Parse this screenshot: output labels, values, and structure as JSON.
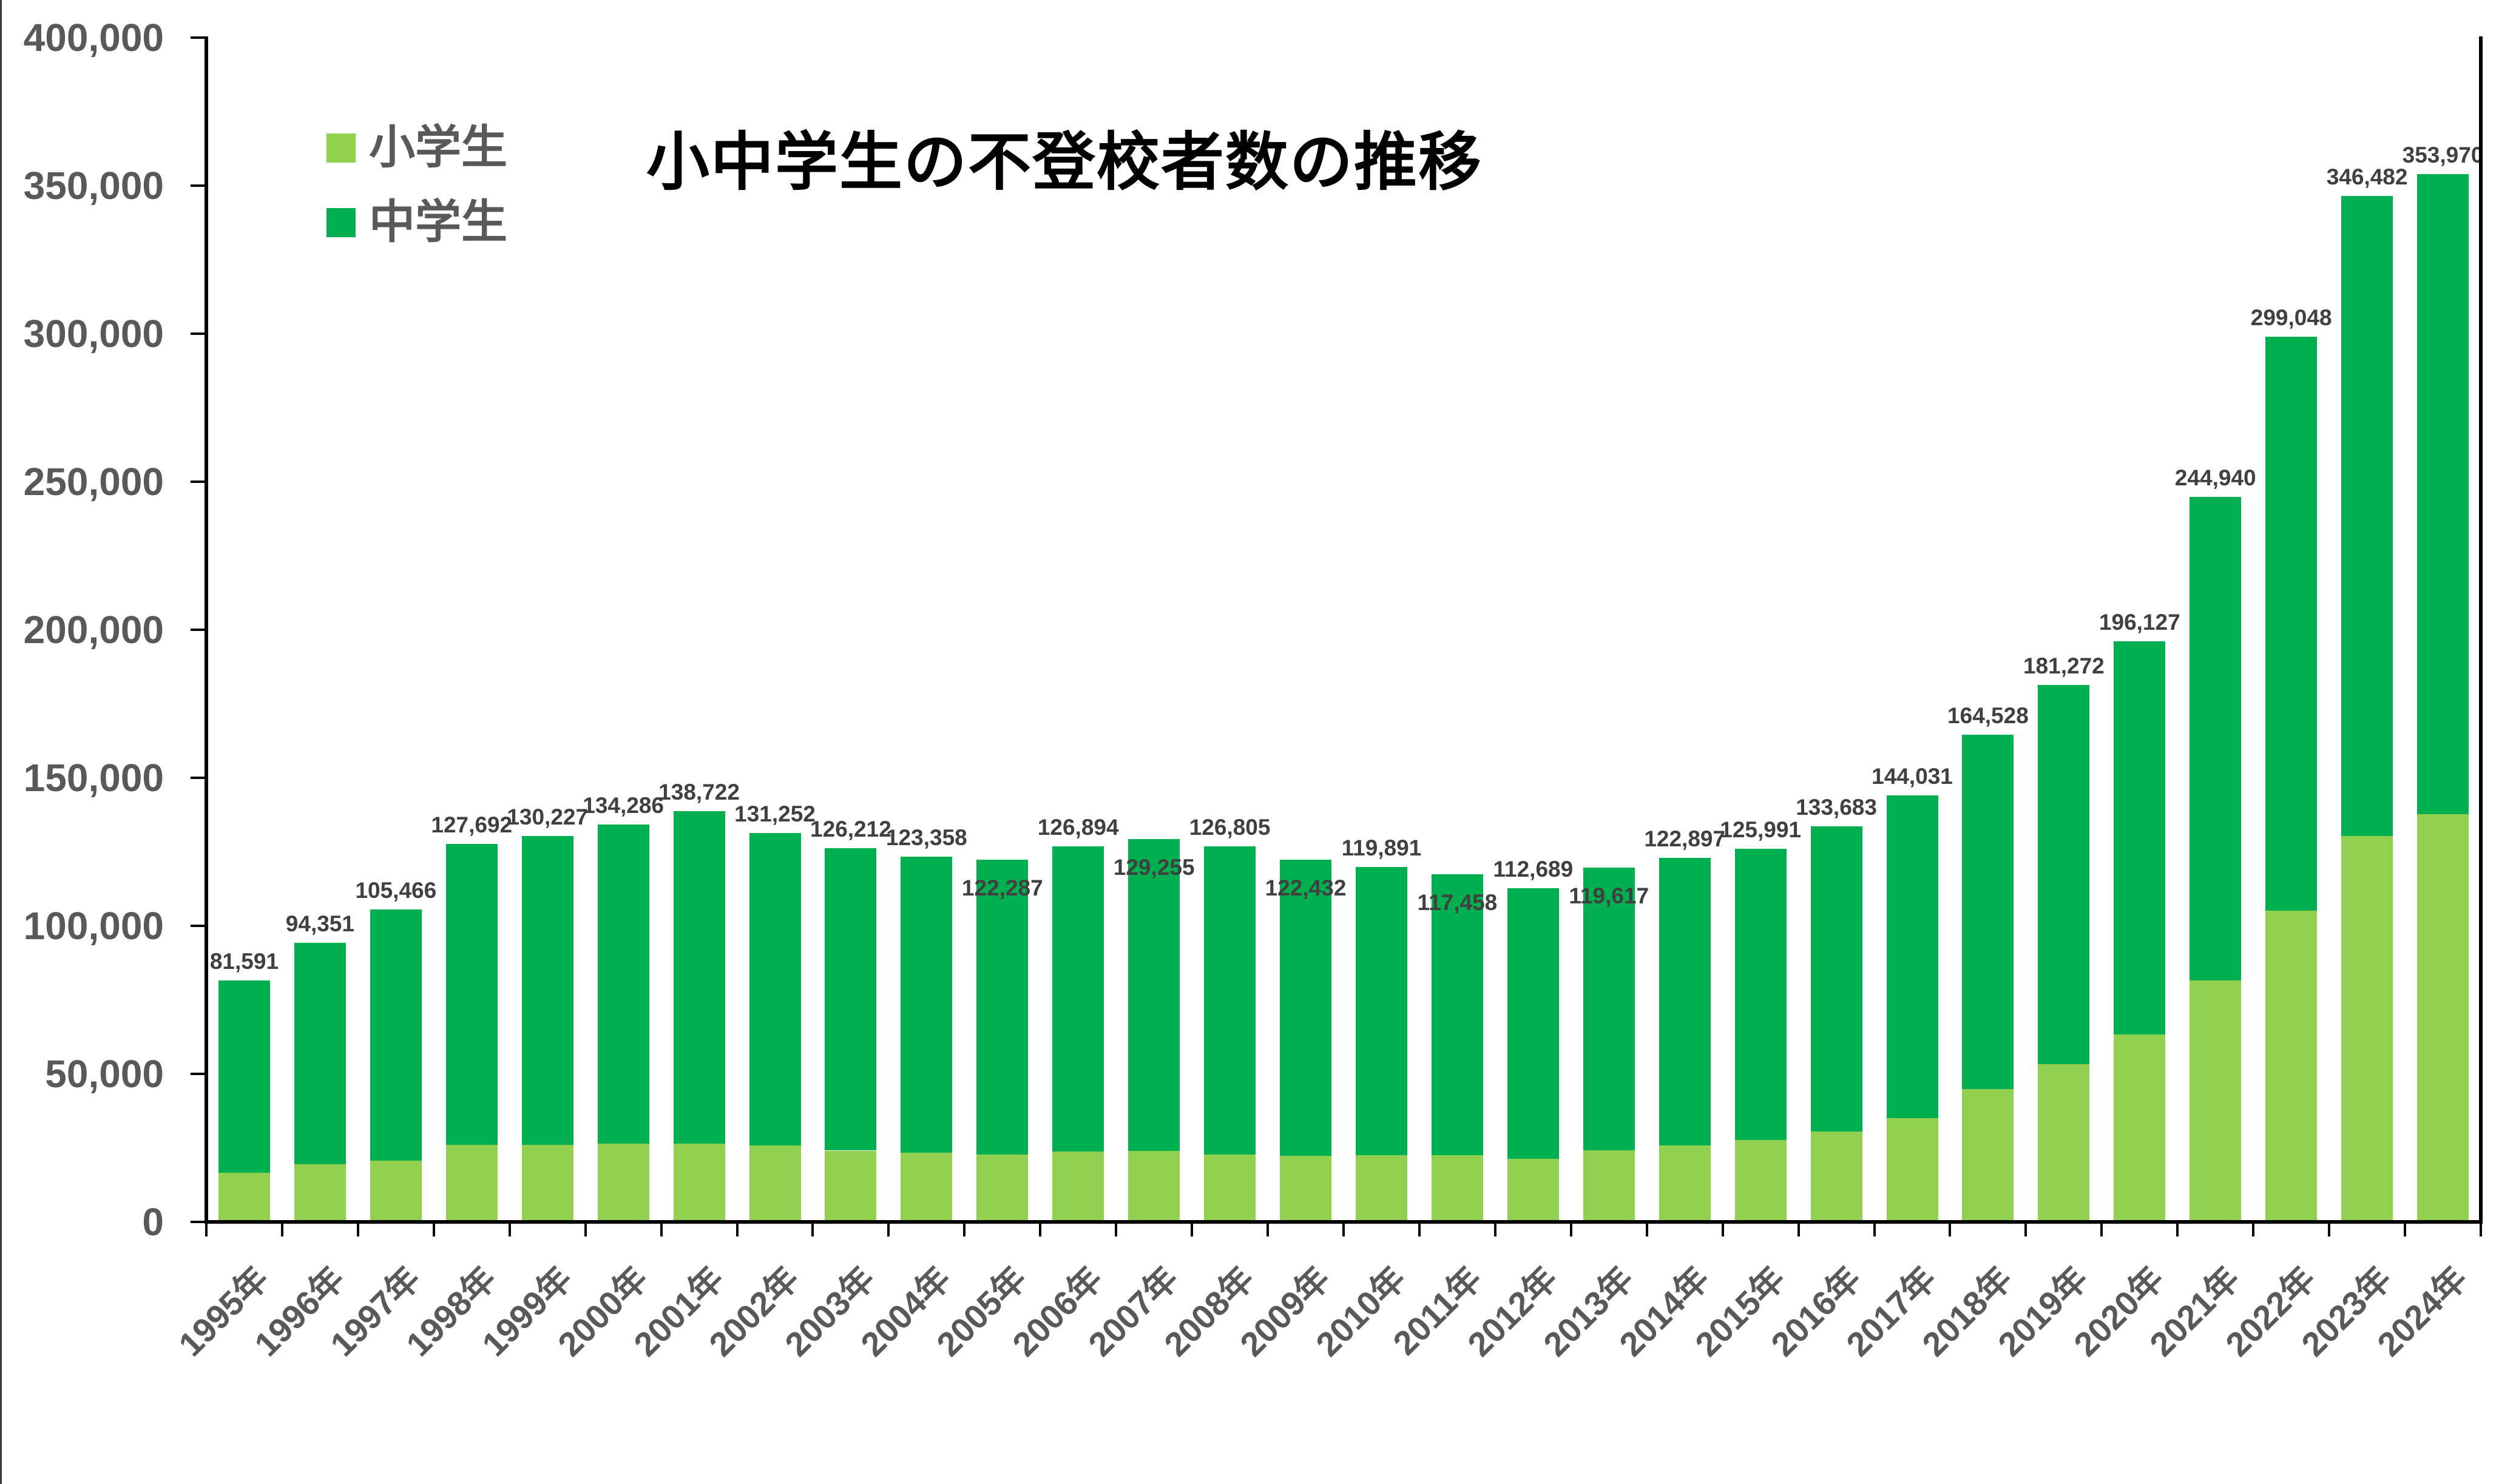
{
  "title": "小中学生の不登校者数の推移",
  "legend": {
    "position": "top-left",
    "items": [
      {
        "label": "小学生",
        "color": "#92D050"
      },
      {
        "label": "中学生",
        "color": "#00B050"
      }
    ]
  },
  "colors": {
    "background": "#FFFFFF",
    "axis": "#000000",
    "title_text": "#000000",
    "tick_label_text": "#595959",
    "data_label_text": "#404040",
    "elementary_green": "#92D050",
    "junior_green": "#00B050"
  },
  "chart_data": {
    "type": "bar",
    "stacked": true,
    "title": "小中学生の不登校者数の推移",
    "xlabel": "",
    "ylabel": "",
    "grid": false,
    "legend_position": "top-left",
    "ylim": [
      0,
      400000
    ],
    "ytick_step": 50000,
    "ytick_labels": [
      "400,000",
      "350,000",
      "300,000",
      "250,000",
      "200,000",
      "150,000",
      "100,000",
      "50,000",
      "0"
    ],
    "categories": [
      "1995年",
      "1996年",
      "1997年",
      "1998年",
      "1999年",
      "2000年",
      "2001年",
      "2002年",
      "2003年",
      "2004年",
      "2005年",
      "2006年",
      "2007年",
      "2008年",
      "2009年",
      "2010年",
      "2011年",
      "2012年",
      "2013年",
      "2014年",
      "2015年",
      "2016年",
      "2017年",
      "2018年",
      "2019年",
      "2020年",
      "2021年",
      "2022年",
      "2023年",
      "2024年"
    ],
    "series": [
      {
        "name": "小学生",
        "color": "#92D050",
        "values": [
          16569,
          19498,
          20765,
          26017,
          26047,
          26373,
          26511,
          25869,
          24077,
          23318,
          22709,
          23825,
          23927,
          22652,
          22327,
          22463,
          22622,
          21243,
          24175,
          25864,
          27583,
          30448,
          35032,
          44841,
          53350,
          63350,
          81498,
          105112,
          130370,
          137704
        ]
      },
      {
        "name": "中学生",
        "color": "#00B050",
        "values": [
          65022,
          74853,
          84701,
          101675,
          104180,
          107913,
          112211,
          105383,
          102135,
          100040,
          99578,
          103069,
          105328,
          104153,
          100105,
          97428,
          94836,
          91446,
          95442,
          97033,
          98408,
          103235,
          108999,
          119687,
          127922,
          132777,
          163442,
          193936,
          216112,
          216266
        ]
      }
    ],
    "totals": [
      81591,
      94351,
      105466,
      127692,
      130227,
      134286,
      138722,
      131252,
      126212,
      123358,
      122287,
      126894,
      129255,
      126805,
      122432,
      119891,
      117458,
      112689,
      119617,
      122897,
      125991,
      133683,
      144031,
      164528,
      181272,
      196127,
      244940,
      299048,
      346482,
      353970
    ],
    "total_labels": [
      "81,591",
      "94,351",
      "105,466",
      "127,692",
      "130,227",
      "134,286",
      "138,722",
      "131,252",
      "126,212",
      "123,358",
      "122,287",
      "126,894",
      "129,255",
      "126,805",
      "122,432",
      "119,891",
      "117,458",
      "112,689",
      "119,617",
      "122,897",
      "125,991",
      "133,683",
      "144,031",
      "164,528",
      "181,272",
      "196,127",
      "244,940",
      "299,048",
      "346,482",
      "353,970"
    ],
    "lowered_labels": [
      "2005年",
      "2007年",
      "2009年",
      "2011年",
      "2013年"
    ]
  }
}
